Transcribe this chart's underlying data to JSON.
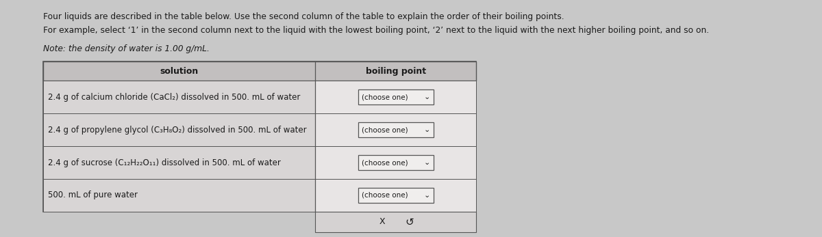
{
  "title_line1": "Four liquids are described in the table below. Use the second column of the table to explain the order of their boiling points.",
  "title_line2": "For example, select ‘1’ in the second column next to the liquid with the lowest boiling point, ‘2’ next to the liquid with the next higher boiling point, and so on.",
  "title_line3": "Note: the density of water is 1.00 g/mL.",
  "col1_header": "solution",
  "col2_header": "boiling point",
  "rows": [
    "2.4 g of calcium chloride (CaCl₂) dissolved in 500. mL of water",
    "2.4 g of propylene glycol (C₃H₈O₂) dissolved in 500. mL of water",
    "2.4 g of sucrose (C₁₂H₂₂O₁₁) dissolved in 500. mL of water",
    "500. mL of pure water"
  ],
  "dropdown_label": "(choose one)",
  "footer_x": "X",
  "footer_undo": "ȳ",
  "bg_color": "#c8c8c8",
  "table_outer_bg": "#e2dfdf",
  "header_bg": "#c2bfbf",
  "cell_bg": "#d8d5d5",
  "col2_bg": "#e8e5e5",
  "footer_box_bg": "#d5d2d2",
  "dropdown_bg": "#f0eeed",
  "border_color": "#888888",
  "border_color_dark": "#555555",
  "text_color": "#1a1a1a",
  "font_size_body": 8.5,
  "font_size_header": 9.0,
  "font_size_title": 8.8
}
